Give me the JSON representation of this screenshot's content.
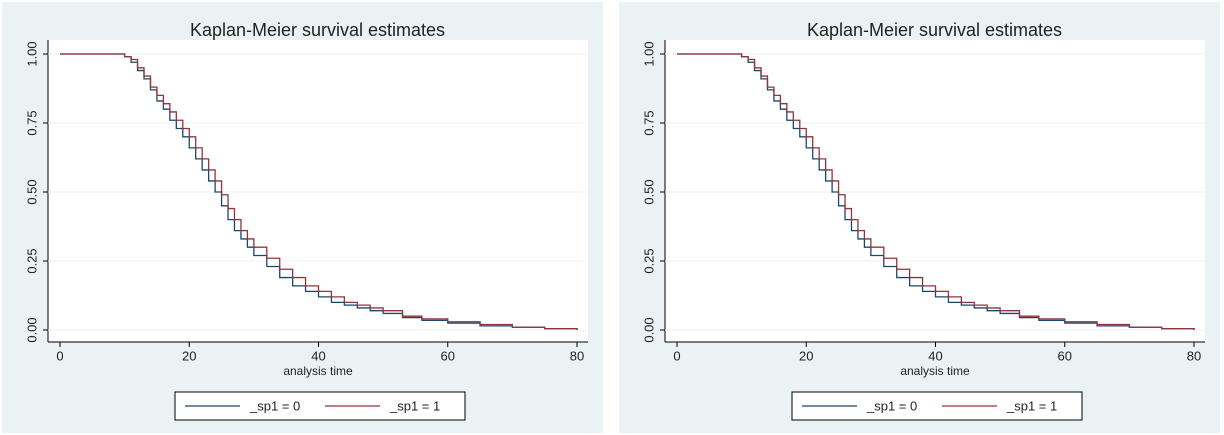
{
  "chart_data": [
    {
      "type": "step",
      "title": "Kaplan-Meier survival estimates",
      "xlabel": "analysis time",
      "x": [
        0,
        9,
        10,
        11,
        12,
        13,
        14,
        15,
        16,
        17,
        18,
        19,
        20,
        21,
        22,
        23,
        24,
        25,
        26,
        27,
        28,
        29,
        30,
        32,
        34,
        36,
        38,
        40,
        42,
        44,
        46,
        48,
        50,
        53,
        56,
        60,
        65,
        70,
        75,
        80
      ],
      "series": [
        {
          "name": "_sp1 = 0",
          "color": "#1a476f",
          "values": [
            1,
            1,
            0.99,
            0.97,
            0.94,
            0.91,
            0.87,
            0.83,
            0.8,
            0.76,
            0.73,
            0.7,
            0.66,
            0.62,
            0.58,
            0.54,
            0.5,
            0.45,
            0.4,
            0.36,
            0.33,
            0.3,
            0.27,
            0.23,
            0.19,
            0.16,
            0.14,
            0.12,
            0.1,
            0.09,
            0.08,
            0.07,
            0.06,
            0.045,
            0.035,
            0.025,
            0.015,
            0.01,
            0.005,
            0
          ]
        },
        {
          "name": "_sp1 = 1",
          "color": "#90353b",
          "values": [
            1,
            1,
            0.99,
            0.98,
            0.95,
            0.92,
            0.88,
            0.85,
            0.82,
            0.79,
            0.76,
            0.73,
            0.7,
            0.66,
            0.62,
            0.58,
            0.54,
            0.49,
            0.44,
            0.4,
            0.36,
            0.33,
            0.3,
            0.26,
            0.22,
            0.19,
            0.16,
            0.14,
            0.12,
            0.1,
            0.09,
            0.08,
            0.07,
            0.05,
            0.04,
            0.03,
            0.02,
            0.01,
            0.005,
            0
          ]
        }
      ],
      "xlim": [
        0,
        80
      ],
      "xticks": [
        0,
        20,
        40,
        60,
        80
      ],
      "ylim": [
        0,
        1
      ],
      "yticks": [
        {
          "value": 0,
          "label": "0.00"
        },
        {
          "value": 0.25,
          "label": "0.25"
        },
        {
          "value": 0.5,
          "label": "0.50"
        },
        {
          "value": 0.75,
          "label": "0.75"
        },
        {
          "value": 1,
          "label": "1.00"
        }
      ],
      "grid": true,
      "legend": "bottom"
    },
    {
      "type": "step",
      "title": "Kaplan-Meier survival estimates",
      "xlabel": "analysis time",
      "x": [
        0,
        9,
        10,
        11,
        12,
        13,
        14,
        15,
        16,
        17,
        18,
        19,
        20,
        21,
        22,
        23,
        24,
        25,
        26,
        27,
        28,
        29,
        30,
        32,
        34,
        36,
        38,
        40,
        42,
        44,
        46,
        48,
        50,
        53,
        56,
        60,
        65,
        70,
        75,
        80
      ],
      "series": [
        {
          "name": "_sp1 = 0",
          "color": "#1a476f",
          "values": [
            1,
            1,
            0.99,
            0.97,
            0.94,
            0.91,
            0.87,
            0.83,
            0.8,
            0.76,
            0.73,
            0.7,
            0.66,
            0.62,
            0.58,
            0.54,
            0.5,
            0.45,
            0.4,
            0.36,
            0.33,
            0.3,
            0.27,
            0.23,
            0.19,
            0.16,
            0.14,
            0.12,
            0.1,
            0.09,
            0.08,
            0.07,
            0.06,
            0.045,
            0.035,
            0.025,
            0.015,
            0.01,
            0.005,
            0
          ]
        },
        {
          "name": "_sp1 = 1",
          "color": "#90353b",
          "values": [
            1,
            1,
            0.99,
            0.98,
            0.95,
            0.92,
            0.88,
            0.85,
            0.82,
            0.79,
            0.76,
            0.73,
            0.7,
            0.66,
            0.62,
            0.58,
            0.54,
            0.49,
            0.44,
            0.4,
            0.36,
            0.33,
            0.3,
            0.26,
            0.22,
            0.19,
            0.16,
            0.14,
            0.12,
            0.1,
            0.09,
            0.08,
            0.07,
            0.05,
            0.04,
            0.03,
            0.02,
            0.01,
            0.005,
            0
          ]
        }
      ],
      "xlim": [
        0,
        80
      ],
      "xticks": [
        0,
        20,
        40,
        60,
        80
      ],
      "ylim": [
        0,
        1
      ],
      "yticks": [
        {
          "value": 0,
          "label": "0.00"
        },
        {
          "value": 0.25,
          "label": "0.25"
        },
        {
          "value": 0.5,
          "label": "0.50"
        },
        {
          "value": 0.75,
          "label": "0.75"
        },
        {
          "value": 1,
          "label": "1.00"
        }
      ],
      "grid": true,
      "legend": "bottom"
    }
  ]
}
